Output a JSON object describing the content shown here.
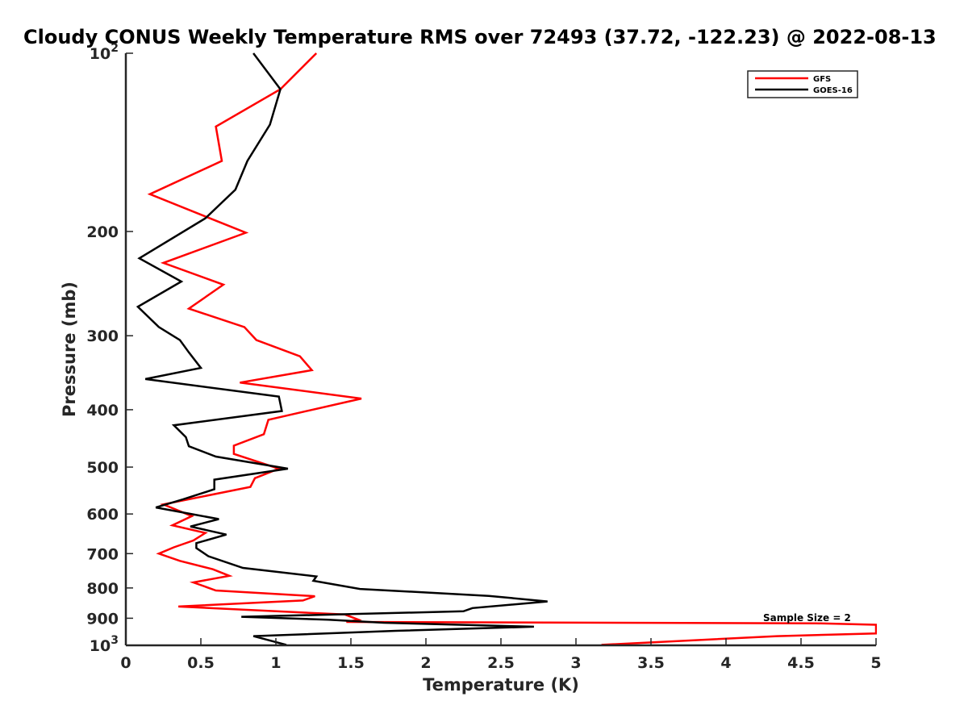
{
  "chart_data": {
    "type": "line",
    "title": "Cloudy CONUS Weekly Temperature RMS over 72493 (37.72, -122.23) @ 2022-08-13",
    "xlabel": "Temperature (K)",
    "ylabel": "Pressure (mb)",
    "xlim": [
      0,
      5
    ],
    "ylim": [
      100,
      1000
    ],
    "y_scale": "log",
    "y_reversed": true,
    "grid": false,
    "legend_position": "top-right",
    "x_ticks": [
      0,
      0.5,
      1,
      1.5,
      2,
      2.5,
      3,
      3.5,
      4,
      4.5,
      5
    ],
    "x_tick_labels": [
      "0",
      "0.5",
      "1",
      "1.5",
      "2",
      "2.5",
      "3",
      "3.5",
      "4",
      "4.5",
      "5"
    ],
    "y_ticks": [
      100,
      200,
      300,
      400,
      500,
      600,
      700,
      800,
      900,
      1000
    ],
    "y_tick_labels": [
      {
        "base": "10",
        "exp": "2"
      },
      {
        "base": "200",
        "exp": ""
      },
      {
        "base": "300",
        "exp": ""
      },
      {
        "base": "400",
        "exp": ""
      },
      {
        "base": "500",
        "exp": ""
      },
      {
        "base": "600",
        "exp": ""
      },
      {
        "base": "700",
        "exp": ""
      },
      {
        "base": "800",
        "exp": ""
      },
      {
        "base": "900",
        "exp": ""
      },
      {
        "base": "10",
        "exp": "3"
      }
    ],
    "annotation": "Sample Size = 2",
    "series": [
      {
        "name": "GFS",
        "color": "#ff0000",
        "points": [
          [
            1.27,
            100
          ],
          [
            1.03,
            115
          ],
          [
            0.6,
            133
          ],
          [
            0.64,
            152
          ],
          [
            0.16,
            173
          ],
          [
            0.8,
            201
          ],
          [
            0.25,
            226
          ],
          [
            0.65,
            246
          ],
          [
            0.42,
            270
          ],
          [
            0.79,
            290
          ],
          [
            0.87,
            305
          ],
          [
            1.16,
            325
          ],
          [
            1.24,
            343
          ],
          [
            0.76,
            360
          ],
          [
            1.57,
            383
          ],
          [
            0.95,
            416
          ],
          [
            0.92,
            440
          ],
          [
            0.72,
            460
          ],
          [
            0.72,
            475
          ],
          [
            1.02,
            503
          ],
          [
            0.86,
            522
          ],
          [
            0.83,
            540
          ],
          [
            0.25,
            578
          ],
          [
            0.44,
            605
          ],
          [
            0.31,
            627
          ],
          [
            0.53,
            646
          ],
          [
            0.45,
            665
          ],
          [
            0.32,
            683
          ],
          [
            0.22,
            700
          ],
          [
            0.36,
            720
          ],
          [
            0.58,
            744
          ],
          [
            0.69,
            763
          ],
          [
            0.45,
            783
          ],
          [
            0.6,
            808
          ],
          [
            1.26,
            826
          ],
          [
            1.18,
            840
          ],
          [
            0.35,
            860
          ],
          [
            1.46,
            887
          ],
          [
            1.55,
            905
          ],
          [
            1.47,
            913
          ],
          [
            4.6,
            918
          ],
          [
            5.0,
            923
          ],
          [
            5.0,
            955
          ],
          [
            4.34,
            965
          ],
          [
            3.17,
            998
          ]
        ]
      },
      {
        "name": "GOES-16",
        "color": "#000000",
        "points": [
          [
            0.85,
            100
          ],
          [
            1.03,
            115
          ],
          [
            0.96,
            132
          ],
          [
            0.81,
            152
          ],
          [
            0.73,
            170
          ],
          [
            0.53,
            190
          ],
          [
            0.09,
            222
          ],
          [
            0.37,
            243
          ],
          [
            0.08,
            268
          ],
          [
            0.22,
            290
          ],
          [
            0.36,
            305
          ],
          [
            0.42,
            320
          ],
          [
            0.5,
            340
          ],
          [
            0.13,
            355
          ],
          [
            1.02,
            380
          ],
          [
            1.04,
            402
          ],
          [
            0.32,
            425
          ],
          [
            0.4,
            445
          ],
          [
            0.42,
            461
          ],
          [
            0.6,
            480
          ],
          [
            1.08,
            503
          ],
          [
            0.59,
            525
          ],
          [
            0.59,
            545
          ],
          [
            0.38,
            567
          ],
          [
            0.2,
            585
          ],
          [
            0.62,
            612
          ],
          [
            0.43,
            630
          ],
          [
            0.67,
            650
          ],
          [
            0.47,
            672
          ],
          [
            0.47,
            685
          ],
          [
            0.55,
            707
          ],
          [
            0.78,
            740
          ],
          [
            1.27,
            765
          ],
          [
            1.25,
            778
          ],
          [
            1.56,
            803
          ],
          [
            2.42,
            825
          ],
          [
            2.81,
            843
          ],
          [
            2.31,
            865
          ],
          [
            2.25,
            876
          ],
          [
            0.77,
            895
          ],
          [
            1.35,
            905
          ],
          [
            1.72,
            916
          ],
          [
            2.72,
            930
          ],
          [
            1.8,
            945
          ],
          [
            0.85,
            965
          ],
          [
            1.07,
            998
          ]
        ]
      }
    ]
  }
}
